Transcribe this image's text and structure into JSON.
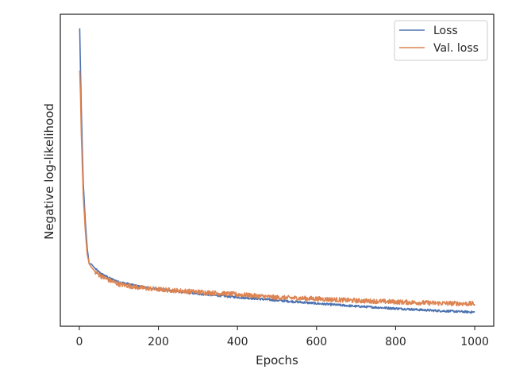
{
  "chart_data": {
    "type": "line",
    "title": "",
    "xlabel": "Epochs",
    "ylabel": "Negative log-likelihood",
    "xlim": [
      -48,
      1048
    ],
    "ylim": [
      0,
      1
    ],
    "y_tick_labels_shown": false,
    "grid": false,
    "legend_position": "top-right",
    "x_ticks": [
      0,
      200,
      400,
      600,
      800,
      1000
    ],
    "series": [
      {
        "name": "Loss",
        "color": "#4c72b0",
        "x": [
          1,
          3,
          5,
          8,
          10,
          15,
          20,
          25,
          30,
          40,
          50,
          60,
          80,
          100,
          150,
          200,
          300,
          400,
          500,
          600,
          700,
          800,
          900,
          1000
        ],
        "y": [
          0.955,
          0.82,
          0.7,
          0.55,
          0.46,
          0.34,
          0.25,
          0.2,
          0.2,
          0.185,
          0.173,
          0.165,
          0.152,
          0.142,
          0.128,
          0.118,
          0.104,
          0.093,
          0.083,
          0.073,
          0.064,
          0.057,
          0.05,
          0.045
        ]
      },
      {
        "name": "Val. loss",
        "color": "#dd8452",
        "x": [
          1,
          3,
          5,
          8,
          10,
          15,
          20,
          25,
          30,
          40,
          50,
          60,
          80,
          100,
          150,
          200,
          300,
          400,
          500,
          600,
          700,
          800,
          900,
          1000
        ],
        "y": [
          0.82,
          0.74,
          0.62,
          0.5,
          0.42,
          0.31,
          0.23,
          0.2,
          0.19,
          0.175,
          0.165,
          0.157,
          0.145,
          0.135,
          0.124,
          0.118,
          0.11,
          0.102,
          0.092,
          0.088,
          0.082,
          0.078,
          0.074,
          0.072
        ]
      }
    ]
  }
}
